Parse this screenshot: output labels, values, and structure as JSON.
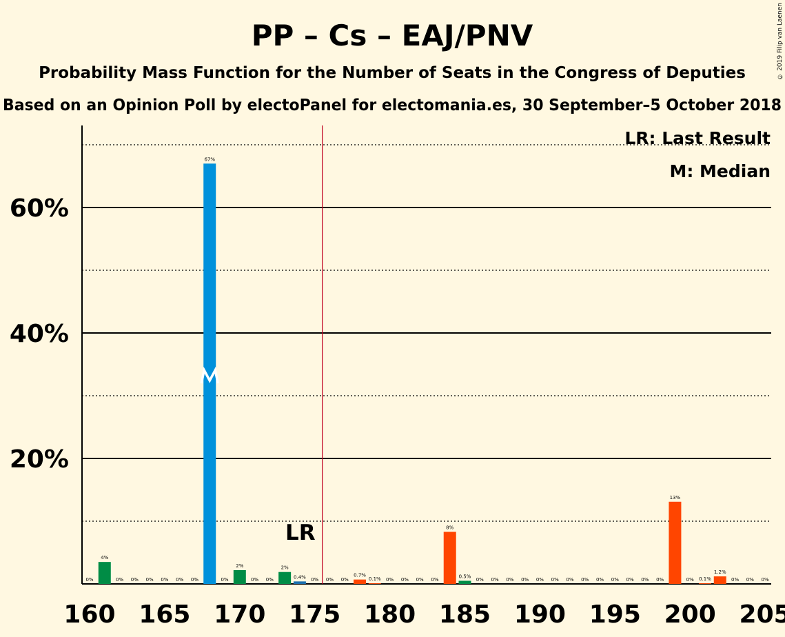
{
  "title": "PP – Cs – EAJ/PNV",
  "subtitle1": "Probability Mass Function for the Number of Seats in the Congress of Deputies",
  "subtitle2": "Based on an Opinion Poll by electoPanel for electomania.es, 30 September–5 October 2018",
  "copyright": "© 2019 Filip van Laenen",
  "legend": {
    "lr": "LR: Last Result",
    "m": "M: Median"
  },
  "lr_label": "LR",
  "median_marker": "M",
  "colors": {
    "background": "#fff8e1",
    "median_bar": "#0091db",
    "green": "#008c45",
    "orange": "#ff4500",
    "blue_small": "#1a6fae",
    "lr_line": "#c00020"
  },
  "chart_data": {
    "type": "bar",
    "xlim": [
      160,
      205
    ],
    "ylim": [
      0,
      70
    ],
    "x_ticks": [
      "160",
      "165",
      "170",
      "175",
      "180",
      "185",
      "190",
      "195",
      "200",
      "205"
    ],
    "y_ticks": [
      "20%",
      "40%",
      "60%"
    ],
    "last_result": 176,
    "median": 168,
    "bars": [
      {
        "x": 160,
        "value": 0,
        "label": "0%",
        "color": "green"
      },
      {
        "x": 161,
        "value": 3.5,
        "label": "4%",
        "color": "green"
      },
      {
        "x": 162,
        "value": 0,
        "label": "0%",
        "color": "green"
      },
      {
        "x": 163,
        "value": 0,
        "label": "0%",
        "color": "green"
      },
      {
        "x": 164,
        "value": 0,
        "label": "0%",
        "color": "green"
      },
      {
        "x": 165,
        "value": 0,
        "label": "0%",
        "color": "green"
      },
      {
        "x": 166,
        "value": 0,
        "label": "0%",
        "color": "green"
      },
      {
        "x": 167,
        "value": 0,
        "label": "0%",
        "color": "green"
      },
      {
        "x": 168,
        "value": 67,
        "label": "67%",
        "color": "median_bar"
      },
      {
        "x": 169,
        "value": 0,
        "label": "0%",
        "color": "green"
      },
      {
        "x": 170,
        "value": 2.2,
        "label": "2%",
        "color": "green"
      },
      {
        "x": 171,
        "value": 0,
        "label": "0%",
        "color": "green"
      },
      {
        "x": 172,
        "value": 0,
        "label": "0%",
        "color": "green"
      },
      {
        "x": 173,
        "value": 1.9,
        "label": "2%",
        "color": "green"
      },
      {
        "x": 174,
        "value": 0.4,
        "label": "0.4%",
        "color": "blue_small"
      },
      {
        "x": 175,
        "value": 0,
        "label": "0%",
        "color": "green"
      },
      {
        "x": 176,
        "value": 0,
        "label": "0%",
        "color": "orange"
      },
      {
        "x": 177,
        "value": 0,
        "label": "0%",
        "color": "orange"
      },
      {
        "x": 178,
        "value": 0.7,
        "label": "0.7%",
        "color": "orange"
      },
      {
        "x": 179,
        "value": 0.1,
        "label": "0.1%",
        "color": "orange"
      },
      {
        "x": 180,
        "value": 0,
        "label": "0%",
        "color": "orange"
      },
      {
        "x": 181,
        "value": 0,
        "label": "0%",
        "color": "orange"
      },
      {
        "x": 182,
        "value": 0,
        "label": "0%",
        "color": "orange"
      },
      {
        "x": 183,
        "value": 0,
        "label": "0%",
        "color": "orange"
      },
      {
        "x": 184,
        "value": 8.3,
        "label": "8%",
        "color": "orange"
      },
      {
        "x": 185,
        "value": 0.5,
        "label": "0.5%",
        "color": "green"
      },
      {
        "x": 186,
        "value": 0,
        "label": "0%",
        "color": "orange"
      },
      {
        "x": 187,
        "value": 0,
        "label": "0%",
        "color": "orange"
      },
      {
        "x": 188,
        "value": 0,
        "label": "0%",
        "color": "orange"
      },
      {
        "x": 189,
        "value": 0,
        "label": "0%",
        "color": "orange"
      },
      {
        "x": 190,
        "value": 0,
        "label": "0%",
        "color": "orange"
      },
      {
        "x": 191,
        "value": 0,
        "label": "0%",
        "color": "orange"
      },
      {
        "x": 192,
        "value": 0,
        "label": "0%",
        "color": "orange"
      },
      {
        "x": 193,
        "value": 0,
        "label": "0%",
        "color": "orange"
      },
      {
        "x": 194,
        "value": 0,
        "label": "0%",
        "color": "orange"
      },
      {
        "x": 195,
        "value": 0,
        "label": "0%",
        "color": "orange"
      },
      {
        "x": 196,
        "value": 0,
        "label": "0%",
        "color": "orange"
      },
      {
        "x": 197,
        "value": 0,
        "label": "0%",
        "color": "orange"
      },
      {
        "x": 198,
        "value": 0,
        "label": "0%",
        "color": "orange"
      },
      {
        "x": 199,
        "value": 13.1,
        "label": "13%",
        "color": "orange"
      },
      {
        "x": 200,
        "value": 0,
        "label": "0%",
        "color": "orange"
      },
      {
        "x": 201,
        "value": 0.1,
        "label": "0.1%",
        "color": "orange"
      },
      {
        "x": 202,
        "value": 1.2,
        "label": "1.2%",
        "color": "orange"
      },
      {
        "x": 203,
        "value": 0,
        "label": "0%",
        "color": "orange"
      },
      {
        "x": 204,
        "value": 0,
        "label": "0%",
        "color": "orange"
      },
      {
        "x": 205,
        "value": 0,
        "label": "0%",
        "color": "orange"
      }
    ]
  }
}
